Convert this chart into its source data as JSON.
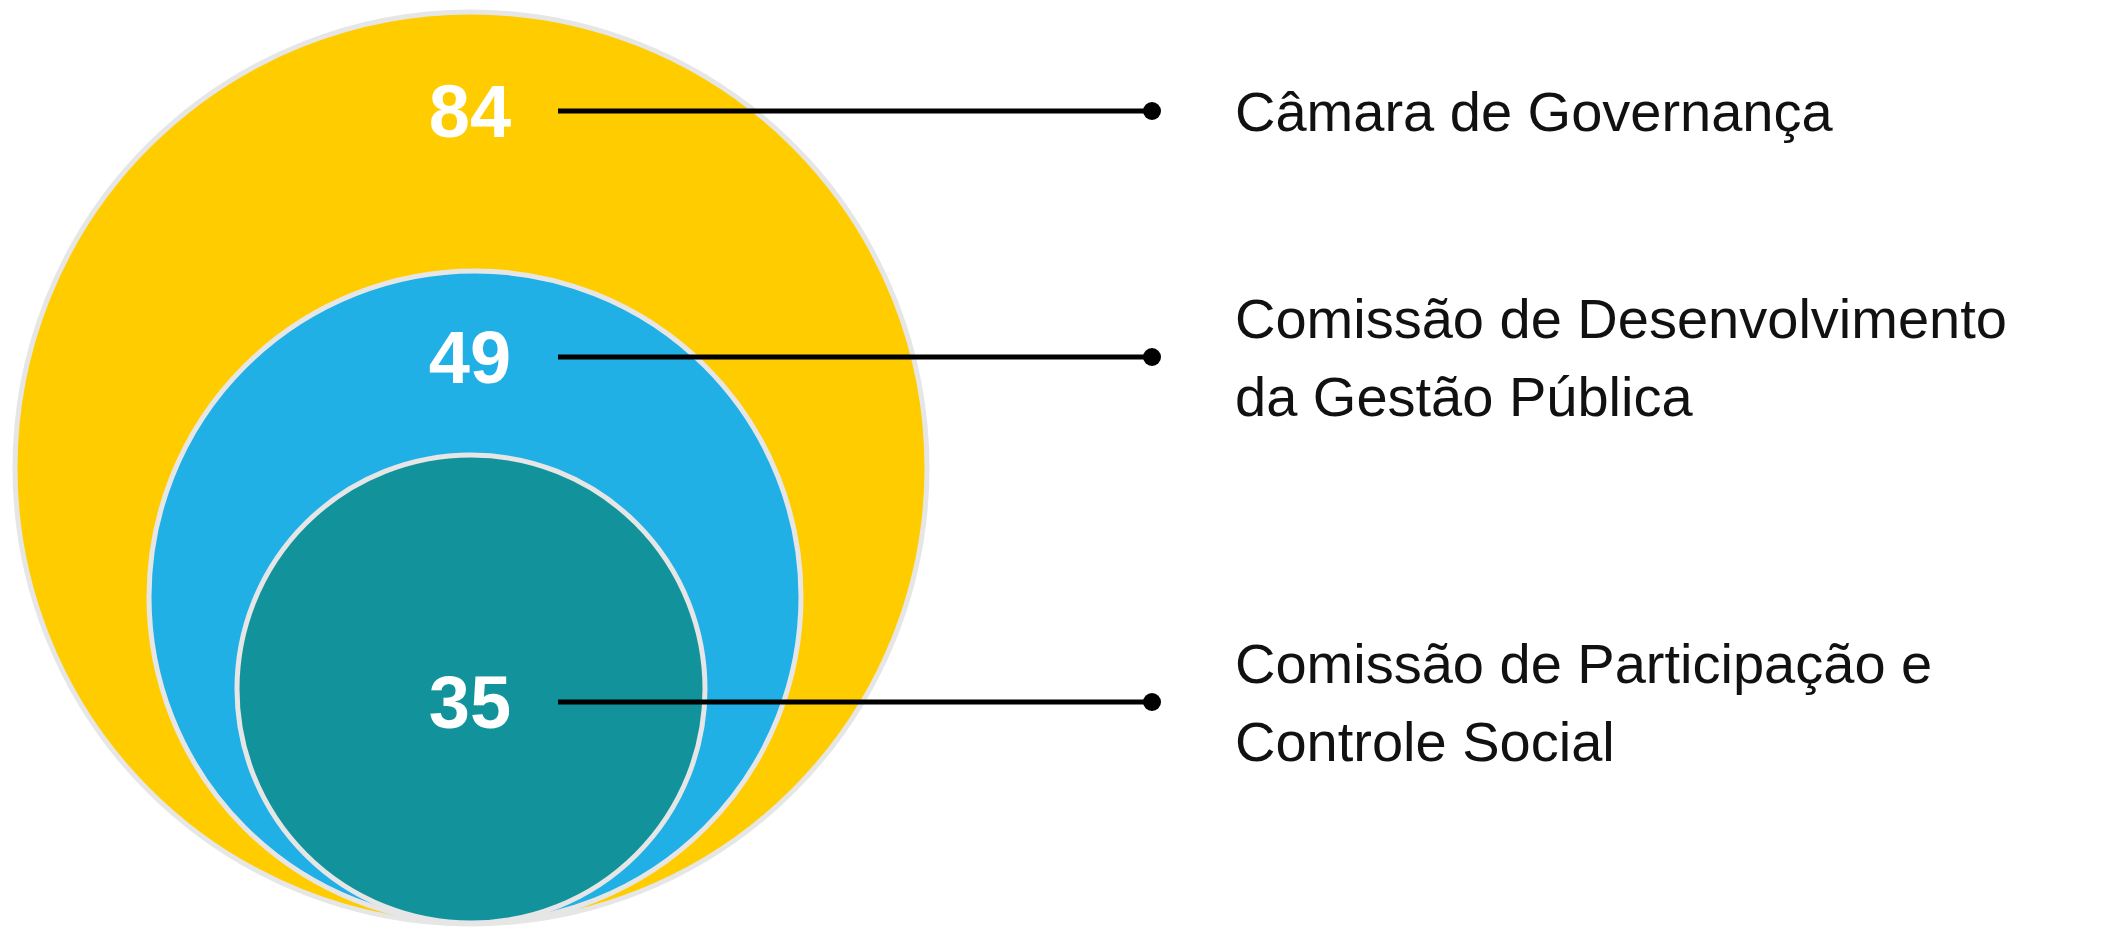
{
  "chart_data": {
    "type": "other",
    "categories": [
      "Câmara de Governança",
      "Comissão de Desenvolvimento da Gestão Pública",
      "Comissão de Participação e Controle Social"
    ],
    "values": [
      84,
      49,
      35
    ],
    "data_labels": true,
    "colors": [
      "#ffcc00",
      "#20b0e6",
      "#12939c"
    ]
  }
}
